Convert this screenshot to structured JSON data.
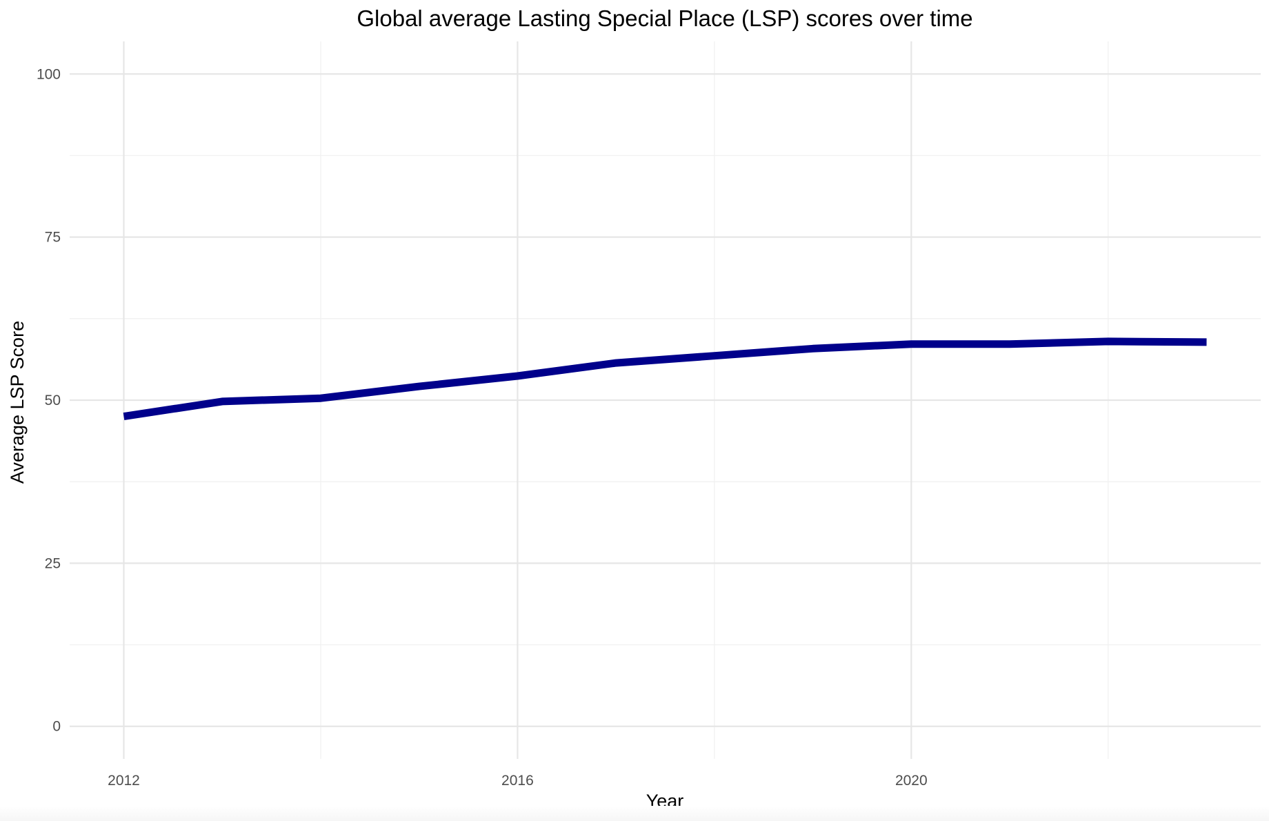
{
  "chart_data": {
    "type": "line",
    "title": "Global average Lasting Special Place (LSP) scores over time",
    "xlabel": "Year",
    "ylabel": "Average LSP Score",
    "x": [
      2012,
      2013,
      2014,
      2015,
      2016,
      2017,
      2018,
      2019,
      2020,
      2021,
      2022,
      2023
    ],
    "series": [
      {
        "values": [
          47.5,
          49.8,
          50.3,
          52.1,
          53.7,
          55.7,
          56.8,
          57.9,
          58.6,
          58.6,
          59.0,
          58.9
        ]
      }
    ],
    "xticks": [
      2012,
      2016,
      2020
    ],
    "yticks": [
      0,
      25,
      50,
      75,
      100
    ],
    "xlim": [
      2011.45,
      2023.55
    ],
    "ylim": [
      -5,
      105
    ],
    "grid": true,
    "legend": "none",
    "colors": {
      "line": "#00008b",
      "grid_major": "#e6e6e6",
      "grid_minor": "#f1f1f1",
      "tick_text": "#4d4d4d"
    }
  }
}
